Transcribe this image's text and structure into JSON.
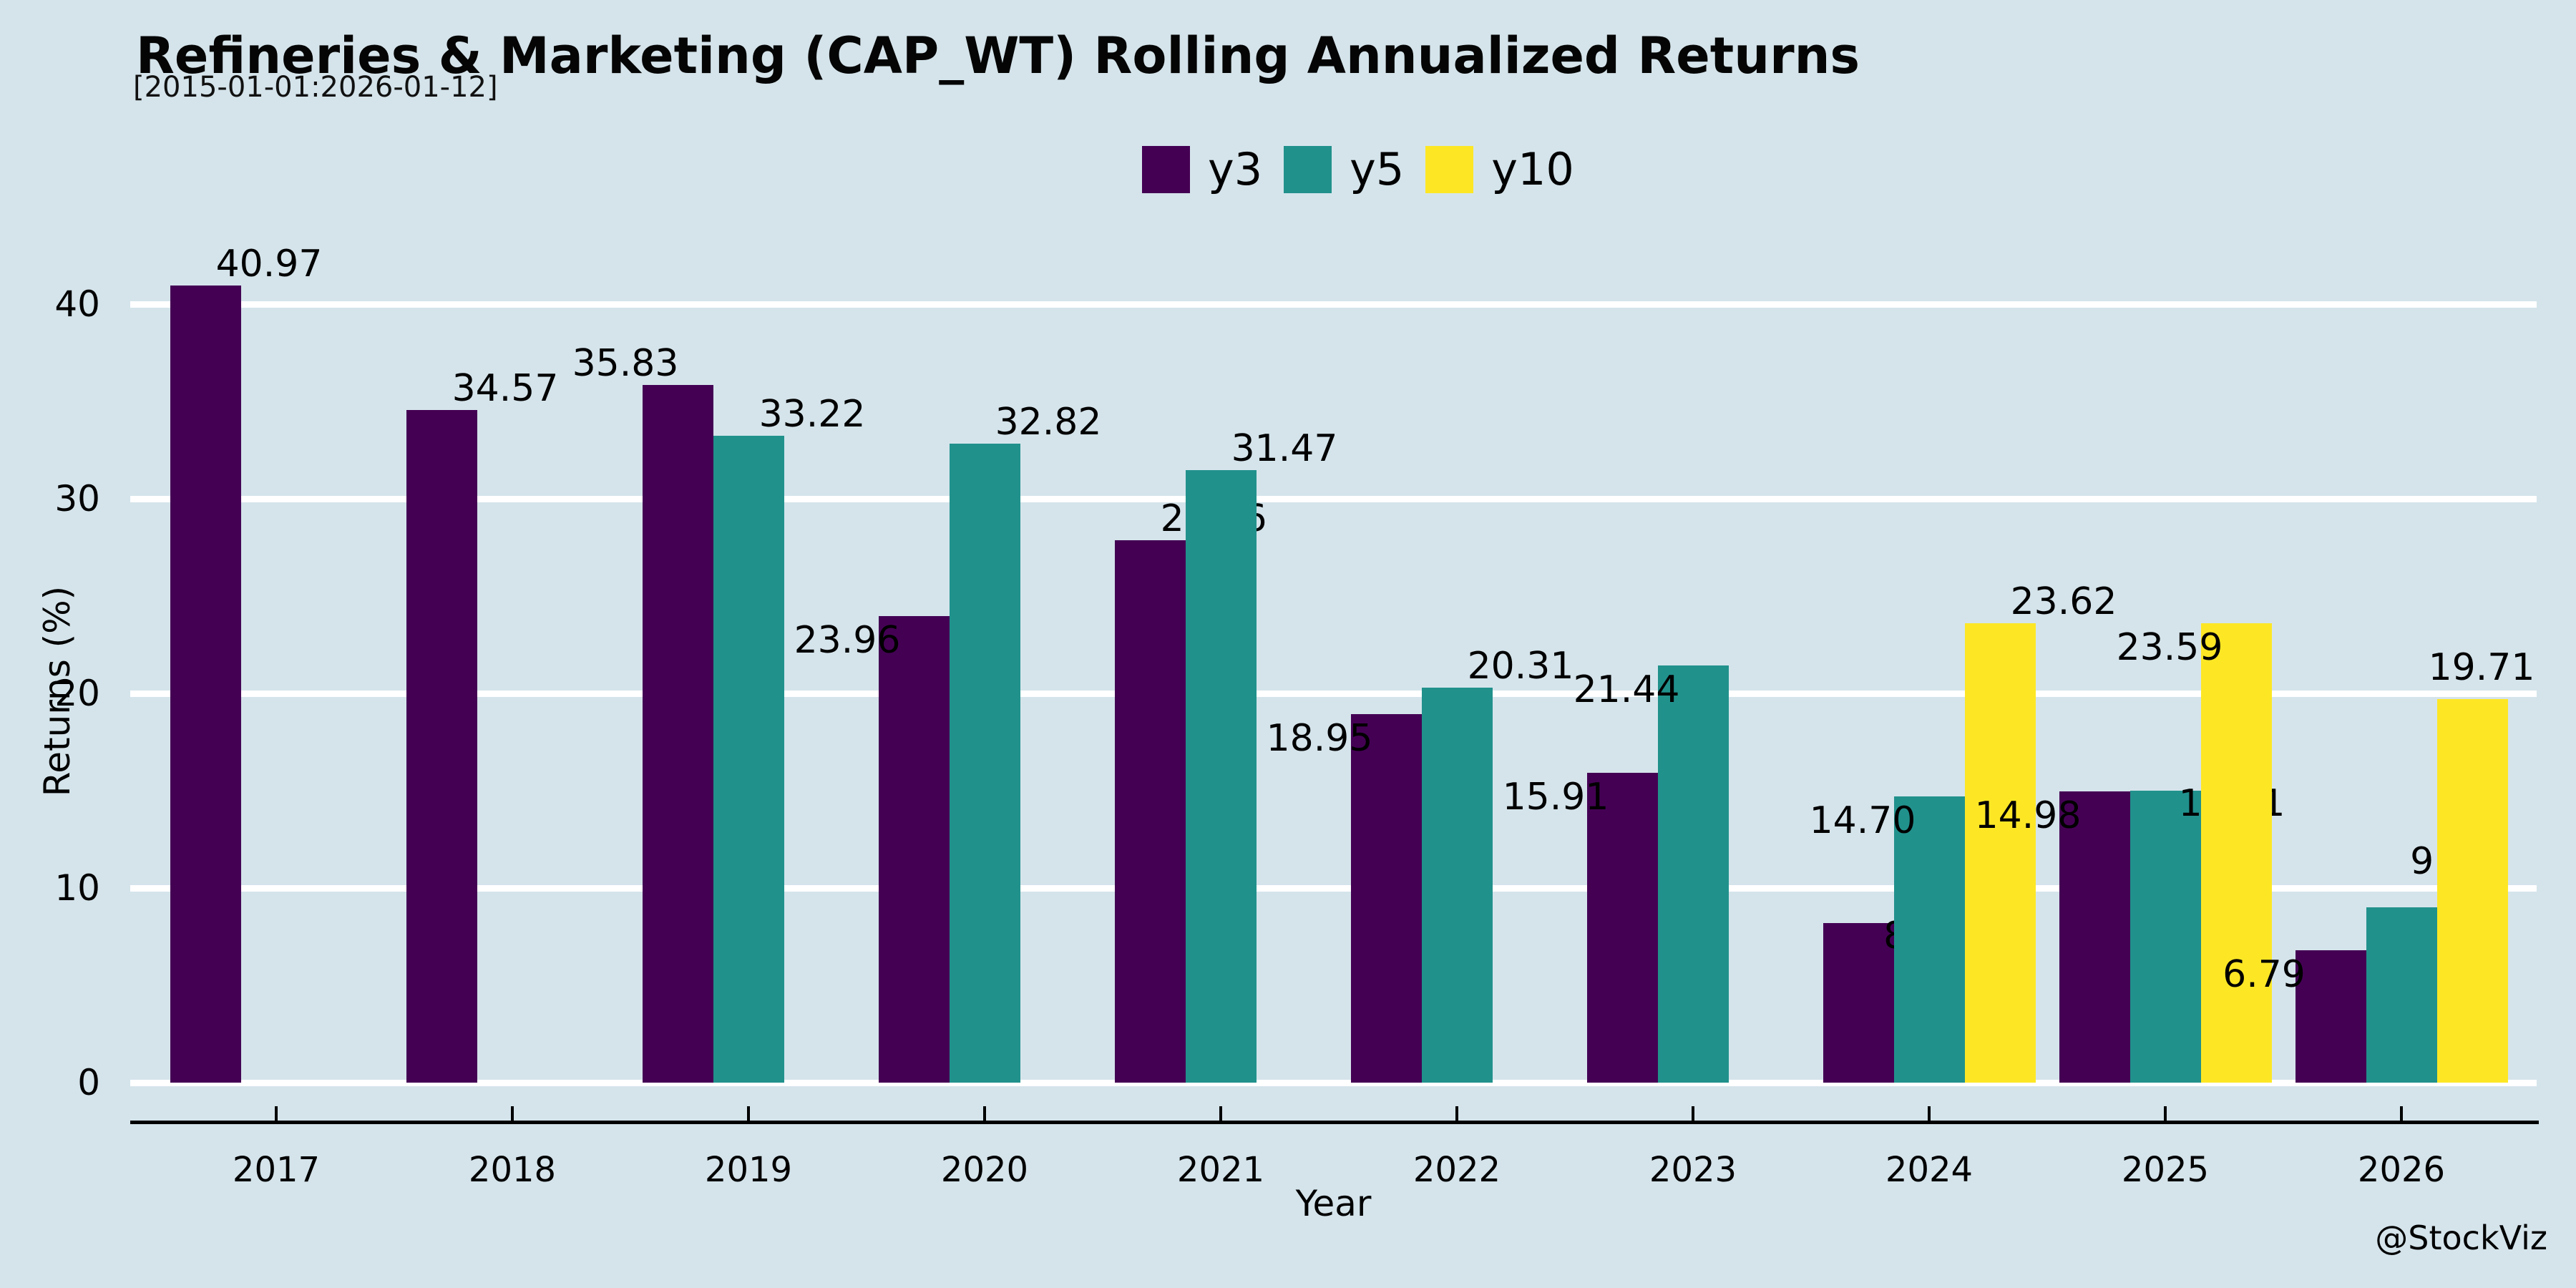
{
  "header": {
    "title": "Refineries & Marketing (CAP_WT) Rolling Annualized Returns",
    "subtitle": "[2015-01-01:2026-01-12]"
  },
  "watermark": "@StockViz",
  "colors": {
    "background": "#d5e4eb",
    "grid": "#ffffff",
    "text": "#000000",
    "y3": "#440154",
    "y5": "#21918c",
    "y10": "#fde725"
  },
  "chart_data": {
    "type": "bar",
    "title": "Refineries & Marketing (CAP_WT) Rolling Annualized Returns",
    "subtitle": "[2015-01-01:2026-01-12]",
    "xlabel": "Year",
    "ylabel": "Returns (%)",
    "categories": [
      "2017",
      "2018",
      "2019",
      "2020",
      "2021",
      "2022",
      "2023",
      "2024",
      "2025",
      "2026"
    ],
    "y_ticks": [
      0,
      10,
      20,
      30,
      40
    ],
    "ylim": [
      0,
      44
    ],
    "grid": true,
    "legend_position": "top-center",
    "series": [
      {
        "name": "y3",
        "color": "#440154",
        "values": [
          40.97,
          34.57,
          35.83,
          23.96,
          27.86,
          18.95,
          15.91,
          8.21,
          14.98,
          6.79
        ],
        "labels": [
          "40.97",
          "34.57",
          "35.83",
          "23.96",
          "27.86",
          "18.95",
          "15.91",
          "8.21",
          "14.98",
          "6.79"
        ],
        "label_pos": [
          "above-right",
          "above-right",
          "above-left",
          "overlap-left",
          "above-right",
          "overlap-left",
          "overlap-left",
          "overlap-right",
          "overlap-left",
          "overlap-left"
        ]
      },
      {
        "name": "y5",
        "color": "#21918c",
        "values": [
          null,
          null,
          33.22,
          32.82,
          31.47,
          20.31,
          21.44,
          14.7,
          15.01,
          9.01
        ],
        "labels": [
          null,
          null,
          "33.22",
          "32.82",
          "31.47",
          "20.31",
          "21.44",
          "14.70",
          "15.01",
          "9.01"
        ],
        "label_pos": [
          null,
          null,
          "above-right",
          "above-right",
          "above-right",
          "above-right",
          "overlap-left",
          "overlap-left",
          "overlap-right",
          "high-right"
        ]
      },
      {
        "name": "y10",
        "color": "#fde725",
        "values": [
          null,
          null,
          null,
          null,
          null,
          null,
          null,
          23.62,
          23.59,
          19.71
        ],
        "labels": [
          null,
          null,
          null,
          null,
          null,
          null,
          null,
          "23.62",
          "23.59",
          "19.71"
        ],
        "label_pos": [
          null,
          null,
          null,
          null,
          null,
          null,
          null,
          "above-right",
          "overlap-left",
          "above-center"
        ]
      }
    ]
  }
}
